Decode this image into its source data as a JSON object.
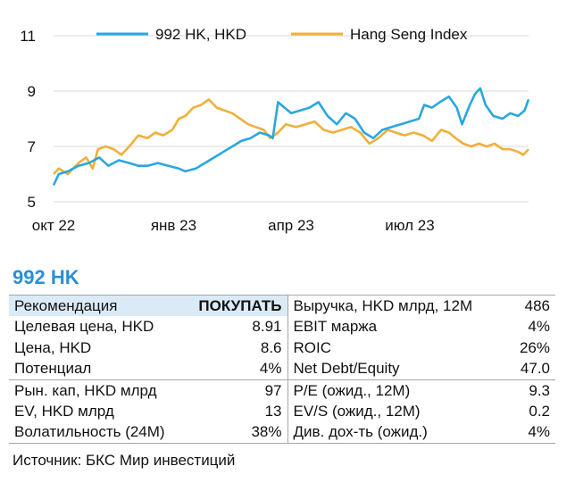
{
  "chart_data": {
    "type": "line",
    "ylim": [
      5,
      11
    ],
    "yticks": [
      5,
      7,
      9,
      11
    ],
    "xlim": [
      "2022-10-01",
      "2023-09-30"
    ],
    "xticks": [
      {
        "date": "2022-10-01",
        "label": "окт 22"
      },
      {
        "date": "2023-01-01",
        "label": "янв 23"
      },
      {
        "date": "2023-04-01",
        "label": "апр 23"
      },
      {
        "date": "2023-07-01",
        "label": "июл 23"
      }
    ],
    "grid": "horizontal",
    "legend_position": "top",
    "series": [
      {
        "name": "992 HK, HKD",
        "color": "#2aa7de",
        "points": [
          [
            "2022-10-01",
            5.6
          ],
          [
            "2022-10-05",
            6.0
          ],
          [
            "2022-10-12",
            6.1
          ],
          [
            "2022-10-20",
            6.3
          ],
          [
            "2022-10-28",
            6.4
          ],
          [
            "2022-11-05",
            6.6
          ],
          [
            "2022-11-12",
            6.3
          ],
          [
            "2022-11-20",
            6.5
          ],
          [
            "2022-11-28",
            6.4
          ],
          [
            "2022-12-05",
            6.3
          ],
          [
            "2022-12-12",
            6.3
          ],
          [
            "2022-12-20",
            6.4
          ],
          [
            "2022-12-28",
            6.3
          ],
          [
            "2023-01-05",
            6.2
          ],
          [
            "2023-01-10",
            6.1
          ],
          [
            "2023-01-18",
            6.2
          ],
          [
            "2023-01-25",
            6.4
          ],
          [
            "2023-02-01",
            6.6
          ],
          [
            "2023-02-08",
            6.8
          ],
          [
            "2023-02-15",
            7.0
          ],
          [
            "2023-02-22",
            7.2
          ],
          [
            "2023-03-01",
            7.3
          ],
          [
            "2023-03-08",
            7.5
          ],
          [
            "2023-03-15",
            7.4
          ],
          [
            "2023-03-18",
            7.3
          ],
          [
            "2023-03-22",
            8.6
          ],
          [
            "2023-03-27",
            8.4
          ],
          [
            "2023-04-01",
            8.2
          ],
          [
            "2023-04-08",
            8.3
          ],
          [
            "2023-04-15",
            8.4
          ],
          [
            "2023-04-22",
            8.6
          ],
          [
            "2023-04-29",
            8.1
          ],
          [
            "2023-05-06",
            7.8
          ],
          [
            "2023-05-13",
            8.2
          ],
          [
            "2023-05-20",
            8.0
          ],
          [
            "2023-05-27",
            7.5
          ],
          [
            "2023-06-03",
            7.3
          ],
          [
            "2023-06-10",
            7.6
          ],
          [
            "2023-06-17",
            7.7
          ],
          [
            "2023-06-24",
            7.8
          ],
          [
            "2023-07-01",
            7.9
          ],
          [
            "2023-07-08",
            8.0
          ],
          [
            "2023-07-12",
            8.5
          ],
          [
            "2023-07-18",
            8.4
          ],
          [
            "2023-07-24",
            8.6
          ],
          [
            "2023-07-31",
            8.8
          ],
          [
            "2023-08-06",
            8.4
          ],
          [
            "2023-08-10",
            7.8
          ],
          [
            "2023-08-16",
            8.5
          ],
          [
            "2023-08-20",
            8.9
          ],
          [
            "2023-08-24",
            9.1
          ],
          [
            "2023-08-28",
            8.5
          ],
          [
            "2023-09-03",
            8.1
          ],
          [
            "2023-09-10",
            8.0
          ],
          [
            "2023-09-16",
            8.2
          ],
          [
            "2023-09-22",
            8.1
          ],
          [
            "2023-09-27",
            8.3
          ],
          [
            "2023-09-30",
            8.7
          ]
        ]
      },
      {
        "name": "Hang Seng Index",
        "color": "#f0b03a",
        "points": [
          [
            "2022-10-01",
            6.0
          ],
          [
            "2022-10-05",
            6.2
          ],
          [
            "2022-10-12",
            6.0
          ],
          [
            "2022-10-20",
            6.4
          ],
          [
            "2022-10-26",
            6.6
          ],
          [
            "2022-10-31",
            6.2
          ],
          [
            "2022-11-04",
            6.9
          ],
          [
            "2022-11-10",
            7.0
          ],
          [
            "2022-11-16",
            6.9
          ],
          [
            "2022-11-22",
            6.7
          ],
          [
            "2022-11-28",
            7.0
          ],
          [
            "2022-12-05",
            7.4
          ],
          [
            "2022-12-12",
            7.3
          ],
          [
            "2022-12-18",
            7.5
          ],
          [
            "2022-12-24",
            7.4
          ],
          [
            "2022-12-31",
            7.6
          ],
          [
            "2023-01-05",
            8.0
          ],
          [
            "2023-01-10",
            8.1
          ],
          [
            "2023-01-16",
            8.4
          ],
          [
            "2023-01-22",
            8.5
          ],
          [
            "2023-01-28",
            8.7
          ],
          [
            "2023-02-03",
            8.4
          ],
          [
            "2023-02-09",
            8.3
          ],
          [
            "2023-02-15",
            8.2
          ],
          [
            "2023-02-21",
            8.0
          ],
          [
            "2023-02-27",
            7.8
          ],
          [
            "2023-03-05",
            7.7
          ],
          [
            "2023-03-11",
            7.6
          ],
          [
            "2023-03-16",
            7.3
          ],
          [
            "2023-03-22",
            7.5
          ],
          [
            "2023-03-28",
            7.8
          ],
          [
            "2023-04-05",
            7.7
          ],
          [
            "2023-04-12",
            7.8
          ],
          [
            "2023-04-19",
            7.9
          ],
          [
            "2023-04-26",
            7.6
          ],
          [
            "2023-05-03",
            7.5
          ],
          [
            "2023-05-10",
            7.6
          ],
          [
            "2023-05-17",
            7.7
          ],
          [
            "2023-05-24",
            7.5
          ],
          [
            "2023-05-31",
            7.1
          ],
          [
            "2023-06-07",
            7.3
          ],
          [
            "2023-06-14",
            7.6
          ],
          [
            "2023-06-20",
            7.5
          ],
          [
            "2023-06-27",
            7.4
          ],
          [
            "2023-07-04",
            7.5
          ],
          [
            "2023-07-11",
            7.4
          ],
          [
            "2023-07-18",
            7.2
          ],
          [
            "2023-07-25",
            7.6
          ],
          [
            "2023-07-31",
            7.5
          ],
          [
            "2023-08-05",
            7.3
          ],
          [
            "2023-08-11",
            7.1
          ],
          [
            "2023-08-17",
            7.0
          ],
          [
            "2023-08-23",
            7.1
          ],
          [
            "2023-08-29",
            7.0
          ],
          [
            "2023-09-04",
            7.1
          ],
          [
            "2023-09-10",
            6.9
          ],
          [
            "2023-09-16",
            6.9
          ],
          [
            "2023-09-22",
            6.8
          ],
          [
            "2023-09-26",
            6.7
          ],
          [
            "2023-09-30",
            6.9
          ]
        ]
      }
    ]
  },
  "ticker": "992 HK",
  "metrics": {
    "rows": [
      {
        "l1": "Рекомендация",
        "v1": "ПОКУПАТЬ",
        "l2": "Выручка, HKD млрд, 12M",
        "v2": "486"
      },
      {
        "l1": "Целевая цена, HKD",
        "v1": "8.91",
        "l2": "EBIT маржа",
        "v2": "4%"
      },
      {
        "l1": "Цена, HKD",
        "v1": "8.6",
        "l2": "ROIC",
        "v2": "26%"
      },
      {
        "l1": "Потенциал",
        "v1": "4%",
        "l2": "Net Debt/Equity",
        "v2": "47.0"
      },
      {
        "l1": "Рын. кап, HKD млрд",
        "v1": "97",
        "l2": "P/E (ожид., 12M)",
        "v2": "9.3"
      },
      {
        "l1": "EV, HKD млрд",
        "v1": "13",
        "l2": "EV/S (ожид., 12M)",
        "v2": "0.2"
      },
      {
        "l1": "Волатильность (24M)",
        "v1": "38%",
        "l2": "Див. дох-ть (ожид.)",
        "v2": "4%"
      }
    ]
  },
  "source": "Источник: БКС Мир инвестиций",
  "colors": {
    "accent": "#2a8fd6",
    "highlight": "#dbeaf7",
    "grid": "#d9d9d9"
  }
}
